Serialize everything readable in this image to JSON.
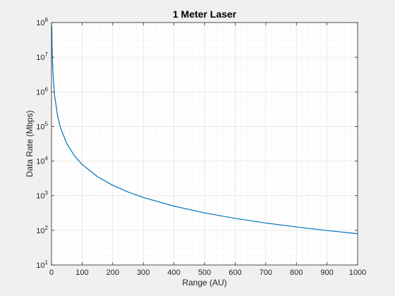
{
  "chart_data": {
    "type": "line",
    "title": "1 Meter Laser",
    "xlabel": "Range (AU)",
    "ylabel": "Data Rate (Mbps)",
    "xlim": [
      0,
      1000
    ],
    "ylim": [
      10,
      100000000
    ],
    "yscale": "log",
    "grid": true,
    "minor_grid": true,
    "x_ticks": [
      0,
      100,
      200,
      300,
      400,
      500,
      600,
      700,
      800,
      900,
      1000
    ],
    "x_tick_labels": [
      "0",
      "100",
      "200",
      "300",
      "400",
      "500",
      "600",
      "700",
      "800",
      "900",
      "1000"
    ],
    "y_ticks": [
      10,
      100,
      1000,
      10000,
      100000,
      1000000,
      10000000,
      100000000
    ],
    "y_tick_labels": [
      {
        "base": "10",
        "exp": "1"
      },
      {
        "base": "10",
        "exp": "2"
      },
      {
        "base": "10",
        "exp": "3"
      },
      {
        "base": "10",
        "exp": "4"
      },
      {
        "base": "10",
        "exp": "5"
      },
      {
        "base": "10",
        "exp": "6"
      },
      {
        "base": "10",
        "exp": "7"
      },
      {
        "base": "10",
        "exp": "8"
      }
    ],
    "series_color": "#0072bd",
    "series": [
      {
        "x": [
          1,
          2,
          3,
          5,
          10,
          20,
          30,
          50,
          75,
          100,
          150,
          200,
          250,
          300,
          400,
          500,
          600,
          700,
          800,
          900,
          1000
        ],
        "y": [
          80000000,
          20000000,
          8900000,
          3200000,
          800000,
          200000,
          89000,
          32000,
          14200,
          8000,
          3560,
          2000,
          1280,
          890,
          500,
          320,
          222,
          163,
          125,
          99,
          80
        ]
      }
    ]
  }
}
